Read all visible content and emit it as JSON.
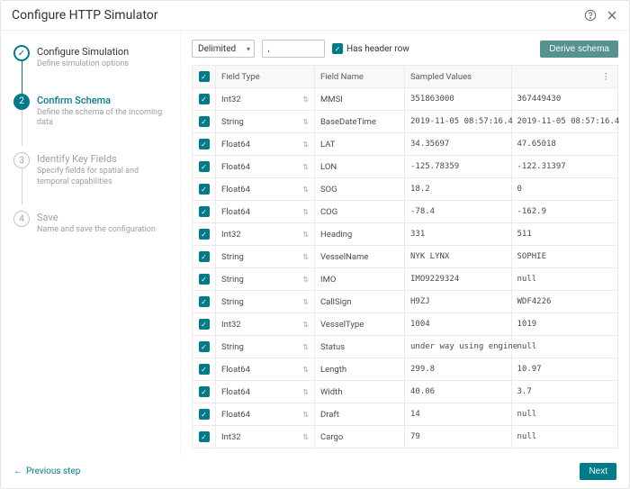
{
  "colors": {
    "accent": "#007b8a",
    "muted": "#9e9e9e",
    "border": "#e6e6e6",
    "header_bg": "#f8f8f8",
    "text": "#323232"
  },
  "dialog": {
    "title": "Configure HTTP Simulator"
  },
  "stepper": {
    "steps": [
      {
        "num": "✓",
        "label": "Configure Simulation",
        "desc": "Define simulation options",
        "state": "done"
      },
      {
        "num": "2",
        "label": "Confirm Schema",
        "desc": "Define the schema of the incoming data",
        "state": "active"
      },
      {
        "num": "3",
        "label": "Identify Key Fields",
        "desc": "Specify fields for spatial and temporal capabilities",
        "state": "pending"
      },
      {
        "num": "4",
        "label": "Save",
        "desc": "Name and save the configuration",
        "state": "pending"
      }
    ]
  },
  "toolbar": {
    "format_select": "Delimited",
    "delimiter_value": ",",
    "header_checkbox_label": "Has header row",
    "header_checkbox_checked": true,
    "derive_button": "Derive schema"
  },
  "table": {
    "columns": {
      "field_type": "Field Type",
      "field_name": "Field Name",
      "sampled_values": "Sampled Values"
    },
    "rows": [
      {
        "checked": true,
        "type": "Int32",
        "name": "MMSI",
        "s1": "351863000",
        "s2": "367449430"
      },
      {
        "checked": true,
        "type": "String",
        "name": "BaseDateTime",
        "s1": "2019-11-05 08:57:16.4",
        "s2": "2019-11-05 08:57:16.4"
      },
      {
        "checked": true,
        "type": "Float64",
        "name": "LAT",
        "s1": "34.35697",
        "s2": "47.65018"
      },
      {
        "checked": true,
        "type": "Float64",
        "name": "LON",
        "s1": "-125.78359",
        "s2": "-122.31397"
      },
      {
        "checked": true,
        "type": "Float64",
        "name": "SOG",
        "s1": "18.2",
        "s2": "0"
      },
      {
        "checked": true,
        "type": "Float64",
        "name": "COG",
        "s1": "-78.4",
        "s2": "-162.9"
      },
      {
        "checked": true,
        "type": "Int32",
        "name": "Heading",
        "s1": "331",
        "s2": "511"
      },
      {
        "checked": true,
        "type": "String",
        "name": "VesselName",
        "s1": "NYK LYNX",
        "s2": "SOPHIE"
      },
      {
        "checked": true,
        "type": "String",
        "name": "IMO",
        "s1": "IMO9229324",
        "s2": "null"
      },
      {
        "checked": true,
        "type": "String",
        "name": "CallSign",
        "s1": "H9ZJ",
        "s2": "WDF4226"
      },
      {
        "checked": true,
        "type": "Int32",
        "name": "VesselType",
        "s1": "1004",
        "s2": "1019"
      },
      {
        "checked": true,
        "type": "String",
        "name": "Status",
        "s1": "under way using engine",
        "s2": "null"
      },
      {
        "checked": true,
        "type": "Float64",
        "name": "Length",
        "s1": "299.8",
        "s2": "10.97"
      },
      {
        "checked": true,
        "type": "Float64",
        "name": "Width",
        "s1": "40.06",
        "s2": "3.7"
      },
      {
        "checked": true,
        "type": "Float64",
        "name": "Draft",
        "s1": "14",
        "s2": "null"
      },
      {
        "checked": true,
        "type": "Int32",
        "name": "Cargo",
        "s1": "79",
        "s2": "null"
      }
    ]
  },
  "footer": {
    "prev": "Previous step",
    "next": "Next"
  }
}
